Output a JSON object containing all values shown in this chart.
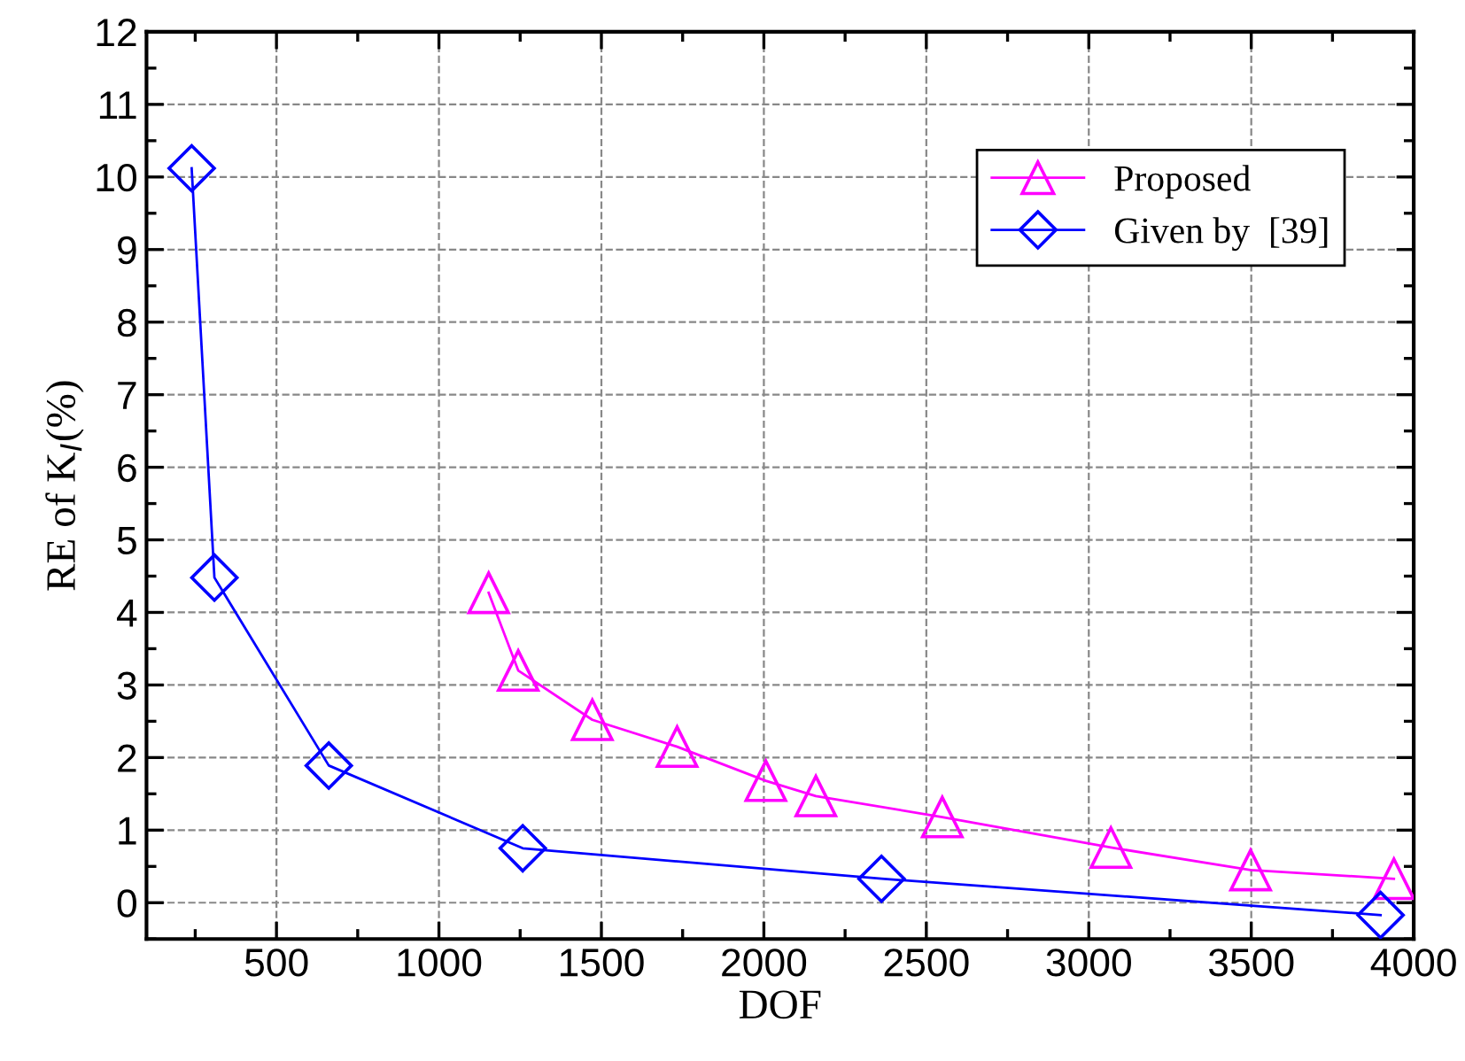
{
  "chart_data": {
    "type": "line",
    "xlabel": "DOF",
    "ylabel": "RE of K$_{I}$(%)",
    "xlim": [
      100,
      4000
    ],
    "xticks": [
      500,
      1000,
      1500,
      2000,
      2500,
      3000,
      3500,
      4000
    ],
    "ylim": [
      -0.5,
      12
    ],
    "yticks": [
      0,
      1,
      2,
      3,
      4,
      5,
      6,
      7,
      8,
      9,
      10,
      11,
      12
    ],
    "grid": true,
    "legend": "top right",
    "line_style": "solid",
    "series": [
      {
        "name": "Proposed",
        "color": "#ff00ff",
        "marker": "triangle",
        "x": [
          1153,
          1244,
          1472,
          1733,
          2006,
          2160,
          2549,
          3068,
          3498,
          3939
        ],
        "values": [
          4.27,
          3.2,
          2.52,
          2.15,
          1.68,
          1.47,
          1.18,
          0.76,
          0.45,
          0.33
        ]
      },
      {
        "name": "Given by  [39]",
        "color": "#0000ff",
        "marker": "diamond",
        "x": [
          239,
          309,
          661,
          1258,
          2362,
          3898
        ],
        "values": [
          10.12,
          4.48,
          1.89,
          0.75,
          0.33,
          -0.17
        ]
      }
    ]
  }
}
